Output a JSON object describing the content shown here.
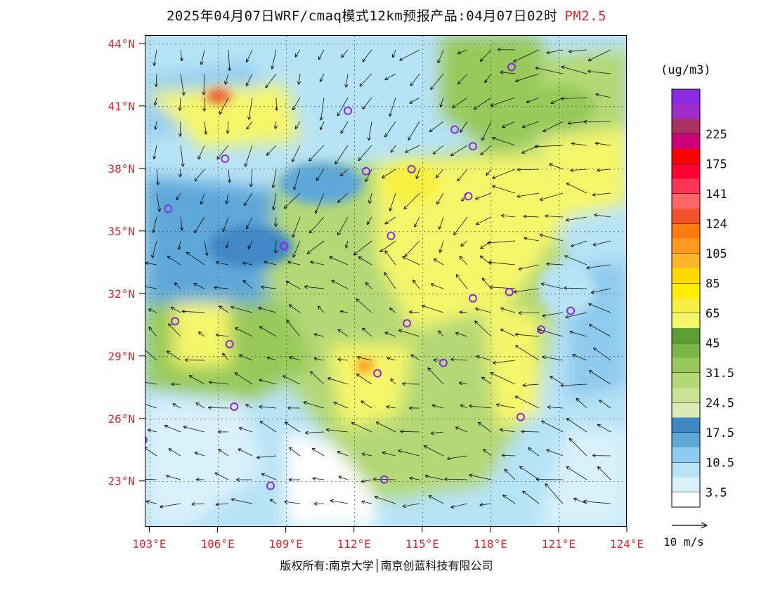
{
  "header": {
    "title": "2025年04月07日WRF/cmaq模式12km预报产品:04月07日02时",
    "pollutant": "PM2.5",
    "pollutant_color": "#e0262e"
  },
  "map": {
    "region": "East China",
    "lon_range": [
      102.8,
      124.0
    ],
    "lat_range": [
      20.8,
      44.4
    ],
    "lat_ticks": [
      {
        "value": 44,
        "label": "44°N"
      },
      {
        "value": 41,
        "label": "41°N"
      },
      {
        "value": 38,
        "label": "38°N"
      },
      {
        "value": 35,
        "label": "35°N"
      },
      {
        "value": 32,
        "label": "32°N"
      },
      {
        "value": 29,
        "label": "29°N"
      },
      {
        "value": 26,
        "label": "26°N"
      },
      {
        "value": 23,
        "label": "23°N"
      }
    ],
    "lon_ticks": [
      {
        "value": 103,
        "label": "103°E"
      },
      {
        "value": 106,
        "label": "106°E"
      },
      {
        "value": 109,
        "label": "109°E"
      },
      {
        "value": 112,
        "label": "112°E"
      },
      {
        "value": 115,
        "label": "115°E"
      },
      {
        "value": 118,
        "label": "118°E"
      },
      {
        "value": 121,
        "label": "121°E"
      },
      {
        "value": 124,
        "label": "124°E"
      }
    ],
    "cities": [
      {
        "lon": 118.9,
        "lat": 42.9
      },
      {
        "lon": 111.7,
        "lat": 40.8
      },
      {
        "lon": 116.4,
        "lat": 39.9
      },
      {
        "lon": 117.2,
        "lat": 39.1
      },
      {
        "lon": 106.3,
        "lat": 38.5
      },
      {
        "lon": 112.5,
        "lat": 37.9
      },
      {
        "lon": 114.5,
        "lat": 38.0
      },
      {
        "lon": 117.0,
        "lat": 36.7
      },
      {
        "lon": 103.8,
        "lat": 36.1
      },
      {
        "lon": 113.6,
        "lat": 34.8
      },
      {
        "lon": 108.9,
        "lat": 34.3
      },
      {
        "lon": 117.2,
        "lat": 31.8
      },
      {
        "lon": 118.8,
        "lat": 32.1
      },
      {
        "lon": 121.5,
        "lat": 31.2
      },
      {
        "lon": 120.2,
        "lat": 30.3
      },
      {
        "lon": 114.3,
        "lat": 30.6
      },
      {
        "lon": 104.1,
        "lat": 30.7
      },
      {
        "lon": 106.5,
        "lat": 29.6
      },
      {
        "lon": 115.9,
        "lat": 28.7
      },
      {
        "lon": 113.0,
        "lat": 28.2
      },
      {
        "lon": 106.7,
        "lat": 26.6
      },
      {
        "lon": 119.3,
        "lat": 26.1
      },
      {
        "lon": 102.7,
        "lat": 25.0
      },
      {
        "lon": 108.3,
        "lat": 22.8
      },
      {
        "lon": 113.3,
        "lat": 23.1
      }
    ]
  },
  "colorbar": {
    "units": "(ug/m3)",
    "colors": [
      "#ffffff",
      "#d9f1fb",
      "#b7e3f6",
      "#8fcbee",
      "#5ea8da",
      "#3f88c6",
      "#dceab5",
      "#c9e394",
      "#b3d876",
      "#98c95a",
      "#7ab646",
      "#5e9f34",
      "#f5f76a",
      "#f8f03f",
      "#ffee00",
      "#ffd800",
      "#ffb42a",
      "#ff9a1e",
      "#ff7a10",
      "#f0532b",
      "#ff6666",
      "#ff3355",
      "#ff0033",
      "#ff0000",
      "#cc0077",
      "#a93060",
      "#a02cc8",
      "#8a2be2"
    ],
    "labels": [
      "3.5",
      "10.5",
      "17.5",
      "24.5",
      "31.5",
      "45",
      "65",
      "85",
      "105",
      "124",
      "141",
      "175",
      "225"
    ]
  },
  "wind_ref": {
    "label": "10 m/s"
  },
  "footer": {
    "copyright": "版权所有:南京大学│南京创蓝科技有限公司"
  }
}
